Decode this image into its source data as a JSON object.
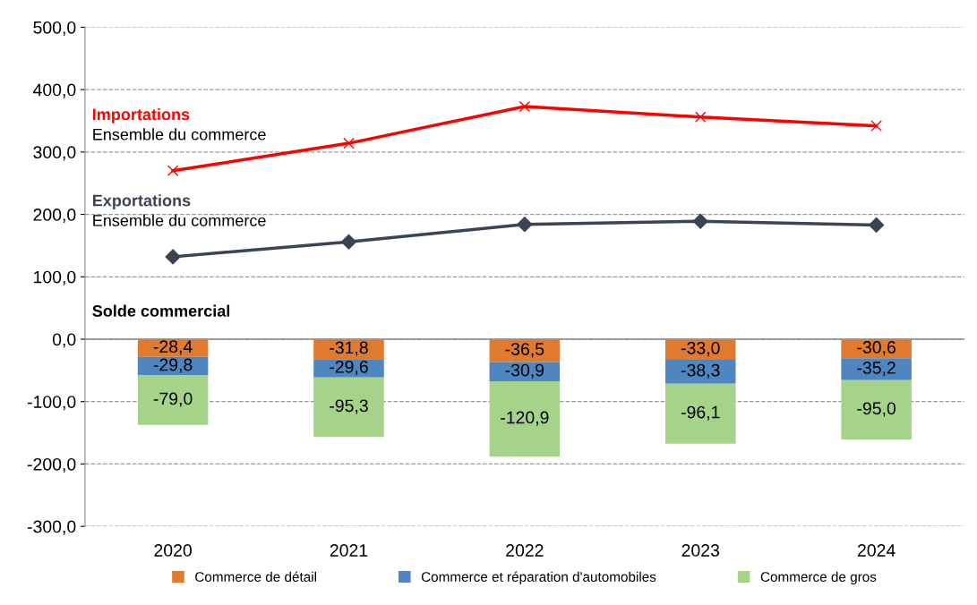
{
  "chart_data": {
    "type": "bar",
    "stacked": true,
    "categories": [
      "2020",
      "2021",
      "2022",
      "2023",
      "2024"
    ],
    "ylim": [
      -300,
      500
    ],
    "yticks": [
      {
        "value": -300,
        "label": "-300,0"
      },
      {
        "value": -200,
        "label": "-200,0"
      },
      {
        "value": -100,
        "label": "-100,0"
      },
      {
        "value": 0,
        "label": "0,0"
      },
      {
        "value": 100,
        "label": "100,0"
      },
      {
        "value": 200,
        "label": "200,0"
      },
      {
        "value": 300,
        "label": "300,0"
      },
      {
        "value": 400,
        "label": "400,0"
      },
      {
        "value": 500,
        "label": "500,0"
      }
    ],
    "grid": "y",
    "legend": "bottom",
    "series": [
      {
        "name": "Commerce de détail",
        "color": "#e07a2e",
        "values": [
          -28.4,
          -31.8,
          -36.5,
          -33.0,
          -30.6
        ],
        "value_labels": [
          "-28,4",
          "-31,8",
          "-36,5",
          "-33,0",
          "-30,6"
        ]
      },
      {
        "name": "Commerce et réparation d'automobiles",
        "color": "#4f86c0",
        "values": [
          -29.8,
          -29.6,
          -30.9,
          -38.3,
          -35.2
        ],
        "value_labels": [
          "-29,8",
          "-29,6",
          "-30,9",
          "-38,3",
          "-35,2"
        ]
      },
      {
        "name": "Commerce de gros",
        "color": "#a6d38a",
        "values": [
          -79.0,
          -95.3,
          -120.9,
          -96.1,
          -95.0
        ],
        "value_labels": [
          "-79,0",
          "-95,3",
          "-120,9",
          "-96,1",
          "-95,0"
        ]
      },
      {
        "name": "Importations",
        "type": "line",
        "color": "#ff0000",
        "marker": "cross",
        "values": [
          270,
          314,
          373,
          356,
          342
        ]
      },
      {
        "name": "Exportations",
        "type": "line",
        "color": "#3a4454",
        "marker": "diamond",
        "values": [
          132,
          156,
          184,
          189,
          183
        ]
      }
    ],
    "annotations": [
      "Ensemble du commerce",
      "Ensemble du commerce",
      "Solde commercial"
    ]
  }
}
